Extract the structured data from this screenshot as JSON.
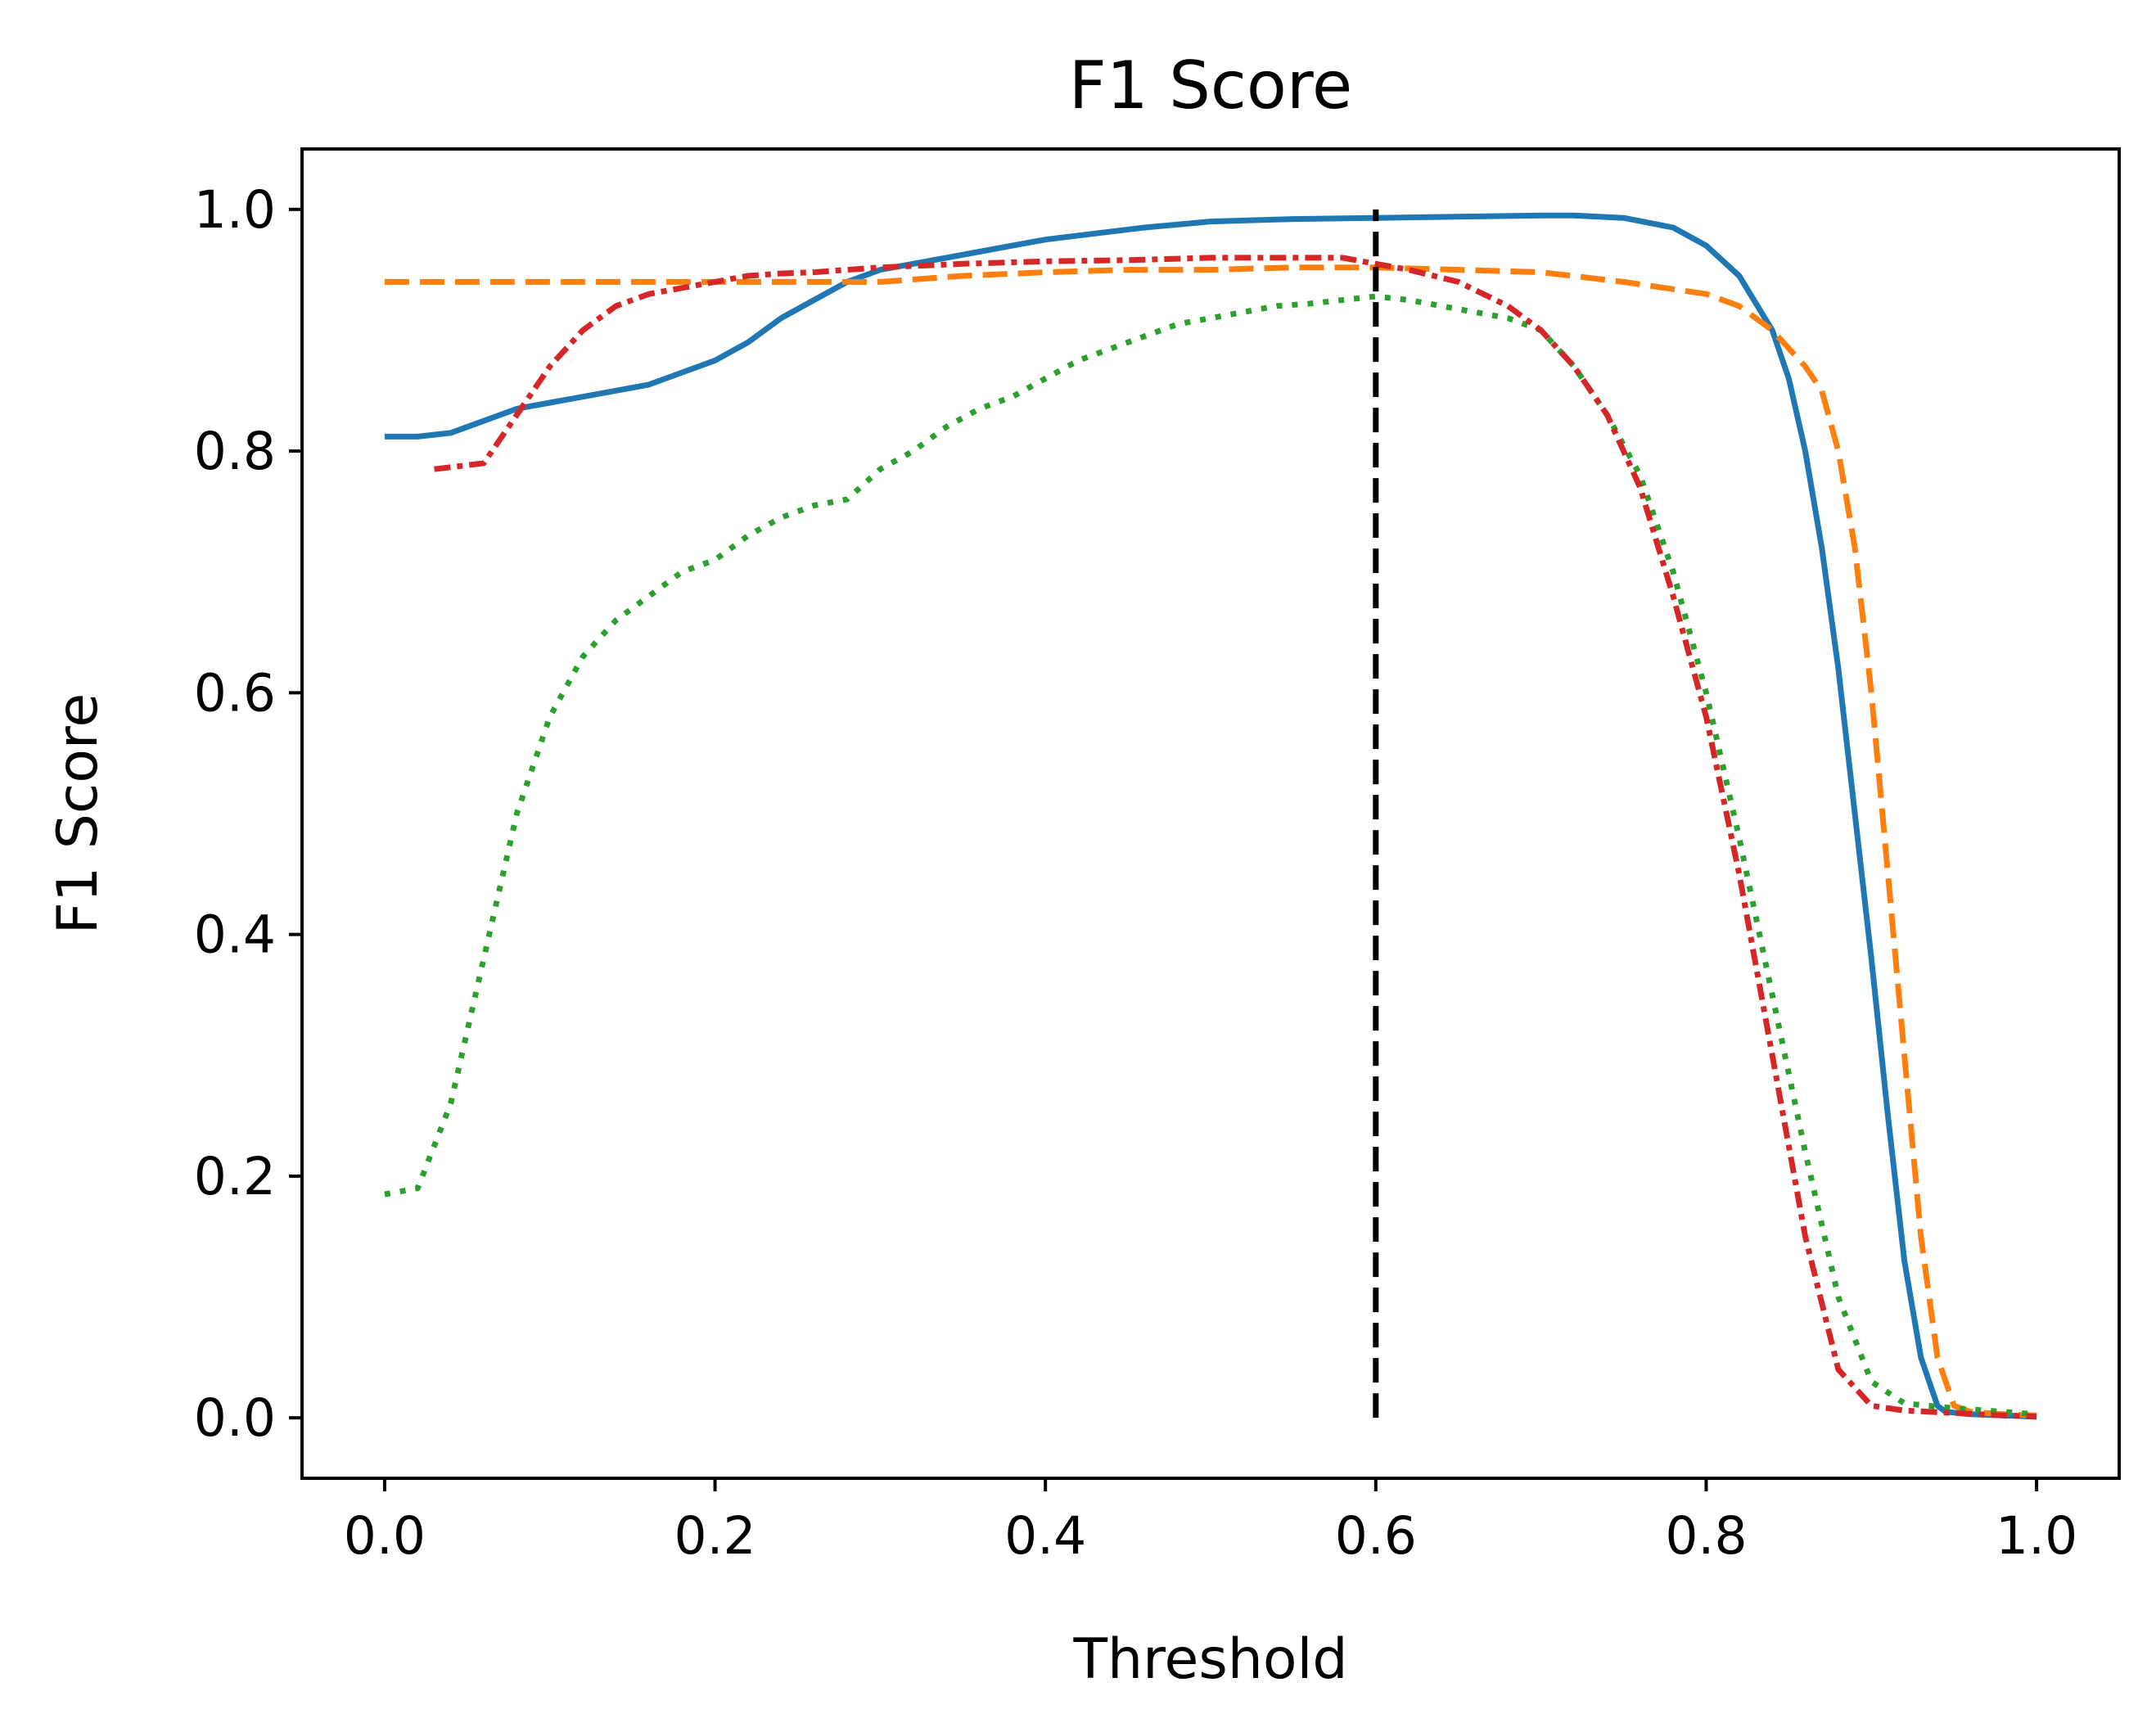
{
  "chart_data": {
    "type": "line",
    "title": "F1 Score",
    "xlabel": "Threshold",
    "ylabel": "F1 Score",
    "xlim": [
      -0.05,
      1.05
    ],
    "ylim": [
      -0.05,
      1.05
    ],
    "xticks": [
      0.0,
      0.2,
      0.4,
      0.6,
      0.8,
      1.0
    ],
    "xtick_labels": [
      "0.0",
      "0.2",
      "0.4",
      "0.6",
      "0.8",
      "1.0"
    ],
    "yticks": [
      0.0,
      0.2,
      0.4,
      0.6,
      0.8,
      1.0
    ],
    "ytick_labels": [
      "0.0",
      "0.2",
      "0.4",
      "0.6",
      "0.8",
      "1.0"
    ],
    "grid": false,
    "legend": false,
    "series": [
      {
        "color": "#1f77b4",
        "linestyle": "solid",
        "x": [
          0.0,
          0.02,
          0.04,
          0.06,
          0.08,
          0.1,
          0.12,
          0.14,
          0.16,
          0.18,
          0.2,
          0.22,
          0.24,
          0.26,
          0.28,
          0.3,
          0.32,
          0.34,
          0.36,
          0.38,
          0.4,
          0.43,
          0.46,
          0.5,
          0.55,
          0.6,
          0.65,
          0.7,
          0.72,
          0.75,
          0.78,
          0.8,
          0.82,
          0.84,
          0.85,
          0.86,
          0.87,
          0.88,
          0.89,
          0.9,
          0.91,
          0.92,
          0.93,
          0.94,
          0.945,
          0.96,
          0.98,
          1.0
        ],
        "y": [
          0.812,
          0.812,
          0.815,
          0.825,
          0.835,
          0.84,
          0.845,
          0.85,
          0.855,
          0.865,
          0.875,
          0.89,
          0.91,
          0.925,
          0.94,
          0.95,
          0.955,
          0.96,
          0.965,
          0.97,
          0.975,
          0.98,
          0.985,
          0.99,
          0.992,
          0.993,
          0.994,
          0.995,
          0.995,
          0.993,
          0.985,
          0.97,
          0.945,
          0.9,
          0.86,
          0.8,
          0.72,
          0.62,
          0.5,
          0.38,
          0.25,
          0.13,
          0.05,
          0.01,
          0.005,
          0.003,
          0.002,
          0.001
        ]
      },
      {
        "color": "#ff7f0e",
        "linestyle": "dashed",
        "x": [
          0.0,
          0.1,
          0.2,
          0.3,
          0.35,
          0.4,
          0.45,
          0.5,
          0.55,
          0.6,
          0.65,
          0.7,
          0.75,
          0.8,
          0.82,
          0.84,
          0.86,
          0.87,
          0.88,
          0.89,
          0.9,
          0.91,
          0.92,
          0.93,
          0.94,
          0.95,
          0.96,
          0.98,
          1.0
        ],
        "y": [
          0.94,
          0.94,
          0.94,
          0.94,
          0.945,
          0.948,
          0.95,
          0.95,
          0.952,
          0.952,
          0.95,
          0.948,
          0.94,
          0.93,
          0.92,
          0.9,
          0.87,
          0.85,
          0.8,
          0.72,
          0.6,
          0.45,
          0.3,
          0.15,
          0.05,
          0.01,
          0.005,
          0.003,
          0.002
        ]
      },
      {
        "color": "#2ca02c",
        "linestyle": "dotted",
        "x": [
          0.0,
          0.02,
          0.04,
          0.06,
          0.08,
          0.1,
          0.12,
          0.14,
          0.16,
          0.18,
          0.2,
          0.22,
          0.24,
          0.26,
          0.28,
          0.3,
          0.32,
          0.34,
          0.36,
          0.38,
          0.4,
          0.42,
          0.44,
          0.46,
          0.48,
          0.5,
          0.52,
          0.54,
          0.56,
          0.58,
          0.6,
          0.62,
          0.64,
          0.66,
          0.68,
          0.7,
          0.72,
          0.74,
          0.76,
          0.78,
          0.8,
          0.82,
          0.84,
          0.86,
          0.88,
          0.9,
          0.92,
          0.95,
          0.98,
          1.0
        ],
        "y": [
          0.185,
          0.19,
          0.26,
          0.38,
          0.5,
          0.58,
          0.63,
          0.66,
          0.68,
          0.7,
          0.71,
          0.73,
          0.745,
          0.755,
          0.76,
          0.785,
          0.8,
          0.82,
          0.835,
          0.845,
          0.86,
          0.875,
          0.885,
          0.895,
          0.905,
          0.91,
          0.915,
          0.92,
          0.922,
          0.925,
          0.928,
          0.925,
          0.92,
          0.915,
          0.91,
          0.9,
          0.87,
          0.83,
          0.78,
          0.7,
          0.6,
          0.48,
          0.35,
          0.22,
          0.1,
          0.03,
          0.012,
          0.008,
          0.005,
          0.003
        ]
      },
      {
        "color": "#d62728",
        "linestyle": "dashdot",
        "x": [
          0.03,
          0.06,
          0.08,
          0.1,
          0.12,
          0.14,
          0.16,
          0.18,
          0.2,
          0.22,
          0.24,
          0.26,
          0.28,
          0.3,
          0.35,
          0.4,
          0.45,
          0.5,
          0.55,
          0.58,
          0.6,
          0.62,
          0.65,
          0.68,
          0.7,
          0.72,
          0.74,
          0.76,
          0.78,
          0.8,
          0.82,
          0.84,
          0.86,
          0.88,
          0.9,
          0.92,
          0.95,
          0.98,
          1.0
        ],
        "y": [
          0.785,
          0.79,
          0.83,
          0.87,
          0.9,
          0.92,
          0.93,
          0.935,
          0.94,
          0.945,
          0.947,
          0.948,
          0.95,
          0.952,
          0.955,
          0.957,
          0.958,
          0.96,
          0.96,
          0.96,
          0.955,
          0.95,
          0.94,
          0.92,
          0.9,
          0.87,
          0.83,
          0.77,
          0.68,
          0.58,
          0.45,
          0.3,
          0.15,
          0.04,
          0.01,
          0.006,
          0.004,
          0.002,
          0.001
        ]
      }
    ],
    "vline": {
      "x": 0.6,
      "ymin": 0.0,
      "ymax": 1.0,
      "color": "#000000",
      "linestyle": "dashed"
    }
  }
}
